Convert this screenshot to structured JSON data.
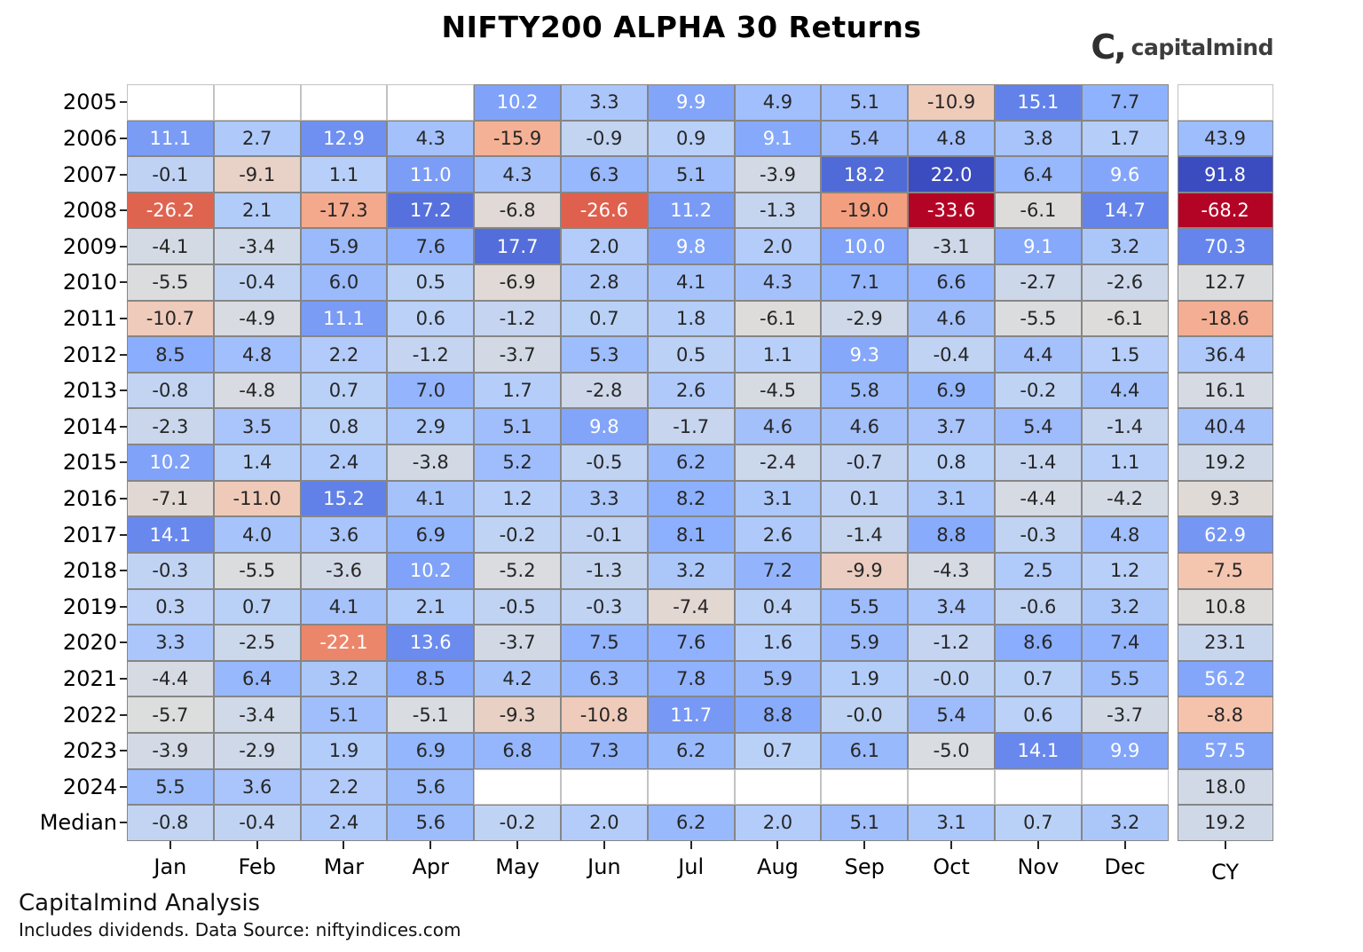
{
  "header": {
    "title": "NIFTY200 ALPHA 30 Returns",
    "logo_mark": "C,",
    "logo_text": "capitalmind"
  },
  "footer": {
    "line1": "Capitalmind Analysis",
    "line2": "Includes dividends. Data Source: niftyindices.com"
  },
  "chart_data": {
    "type": "heatmap",
    "title": "NIFTY200 ALPHA 30 Returns",
    "columns": [
      "Jan",
      "Feb",
      "Mar",
      "Apr",
      "May",
      "Jun",
      "Jul",
      "Aug",
      "Sep",
      "Oct",
      "Nov",
      "Dec"
    ],
    "cy_column": "CY",
    "rows": [
      {
        "label": "2005",
        "values": [
          null,
          null,
          null,
          null,
          "10.2",
          "3.3",
          "9.9",
          "4.9",
          "5.1",
          "-10.9",
          "15.1",
          "7.7"
        ],
        "cy": null
      },
      {
        "label": "2006",
        "values": [
          "11.1",
          "2.7",
          "12.9",
          "4.3",
          "-15.9",
          "-0.9",
          "0.9",
          "9.1",
          "5.4",
          "4.8",
          "3.8",
          "1.7"
        ],
        "cy": "43.9"
      },
      {
        "label": "2007",
        "values": [
          "-0.1",
          "-9.1",
          "1.1",
          "11.0",
          "4.3",
          "6.3",
          "5.1",
          "-3.9",
          "18.2",
          "22.0",
          "6.4",
          "9.6"
        ],
        "cy": "91.8"
      },
      {
        "label": "2008",
        "values": [
          "-26.2",
          "2.1",
          "-17.3",
          "17.2",
          "-6.8",
          "-26.6",
          "11.2",
          "-1.3",
          "-19.0",
          "-33.6",
          "-6.1",
          "14.7"
        ],
        "cy": "-68.2"
      },
      {
        "label": "2009",
        "values": [
          "-4.1",
          "-3.4",
          "5.9",
          "7.6",
          "17.7",
          "2.0",
          "9.8",
          "2.0",
          "10.0",
          "-3.1",
          "9.1",
          "3.2"
        ],
        "cy": "70.3"
      },
      {
        "label": "2010",
        "values": [
          "-5.5",
          "-0.4",
          "6.0",
          "0.5",
          "-6.9",
          "2.8",
          "4.1",
          "4.3",
          "7.1",
          "6.6",
          "-2.7",
          "-2.6"
        ],
        "cy": "12.7"
      },
      {
        "label": "2011",
        "values": [
          "-10.7",
          "-4.9",
          "11.1",
          "0.6",
          "-1.2",
          "0.7",
          "1.8",
          "-6.1",
          "-2.9",
          "4.6",
          "-5.5",
          "-6.1"
        ],
        "cy": "-18.6"
      },
      {
        "label": "2012",
        "values": [
          "8.5",
          "4.8",
          "2.2",
          "-1.2",
          "-3.7",
          "5.3",
          "0.5",
          "1.1",
          "9.3",
          "-0.4",
          "4.4",
          "1.5"
        ],
        "cy": "36.4"
      },
      {
        "label": "2013",
        "values": [
          "-0.8",
          "-4.8",
          "0.7",
          "7.0",
          "1.7",
          "-2.8",
          "2.6",
          "-4.5",
          "5.8",
          "6.9",
          "-0.2",
          "4.4"
        ],
        "cy": "16.1"
      },
      {
        "label": "2014",
        "values": [
          "-2.3",
          "3.5",
          "0.8",
          "2.9",
          "5.1",
          "9.8",
          "-1.7",
          "4.6",
          "4.6",
          "3.7",
          "5.4",
          "-1.4"
        ],
        "cy": "40.4"
      },
      {
        "label": "2015",
        "values": [
          "10.2",
          "1.4",
          "2.4",
          "-3.8",
          "5.2",
          "-0.5",
          "6.2",
          "-2.4",
          "-0.7",
          "0.8",
          "-1.4",
          "1.1"
        ],
        "cy": "19.2"
      },
      {
        "label": "2016",
        "values": [
          "-7.1",
          "-11.0",
          "15.2",
          "4.1",
          "1.2",
          "3.3",
          "8.2",
          "3.1",
          "0.1",
          "3.1",
          "-4.4",
          "-4.2"
        ],
        "cy": "9.3"
      },
      {
        "label": "2017",
        "values": [
          "14.1",
          "4.0",
          "3.6",
          "6.9",
          "-0.2",
          "-0.1",
          "8.1",
          "2.6",
          "-1.4",
          "8.8",
          "-0.3",
          "4.8"
        ],
        "cy": "62.9"
      },
      {
        "label": "2018",
        "values": [
          "-0.3",
          "-5.5",
          "-3.6",
          "10.2",
          "-5.2",
          "-1.3",
          "3.2",
          "7.2",
          "-9.9",
          "-4.3",
          "2.5",
          "1.2"
        ],
        "cy": "-7.5"
      },
      {
        "label": "2019",
        "values": [
          "0.3",
          "0.7",
          "4.1",
          "2.1",
          "-0.5",
          "-0.3",
          "-7.4",
          "0.4",
          "5.5",
          "3.4",
          "-0.6",
          "3.2"
        ],
        "cy": "10.8"
      },
      {
        "label": "2020",
        "values": [
          "3.3",
          "-2.5",
          "-22.1",
          "13.6",
          "-3.7",
          "7.5",
          "7.6",
          "1.6",
          "5.9",
          "-1.2",
          "8.6",
          "7.4"
        ],
        "cy": "23.1"
      },
      {
        "label": "2021",
        "values": [
          "-4.4",
          "6.4",
          "3.2",
          "8.5",
          "4.2",
          "6.3",
          "7.8",
          "5.9",
          "1.9",
          "-0.0",
          "0.7",
          "5.5"
        ],
        "cy": "56.2"
      },
      {
        "label": "2022",
        "values": [
          "-5.7",
          "-3.4",
          "5.1",
          "-5.1",
          "-9.3",
          "-10.8",
          "11.7",
          "8.8",
          "-0.0",
          "5.4",
          "0.6",
          "-3.7"
        ],
        "cy": "-8.8"
      },
      {
        "label": "2023",
        "values": [
          "-3.9",
          "-2.9",
          "1.9",
          "6.9",
          "6.8",
          "7.3",
          "6.2",
          "0.7",
          "6.1",
          "-5.0",
          "14.1",
          "9.9"
        ],
        "cy": "57.5"
      },
      {
        "label": "2024",
        "values": [
          "5.5",
          "3.6",
          "2.2",
          "5.6",
          null,
          null,
          null,
          null,
          null,
          null,
          null,
          null
        ],
        "cy": "18.0"
      },
      {
        "label": "Median",
        "values": [
          "-0.8",
          "-0.4",
          "2.4",
          "5.6",
          "-0.2",
          "2.0",
          "6.2",
          "2.0",
          "5.1",
          "3.1",
          "0.7",
          "3.2"
        ],
        "cy": "19.2"
      }
    ],
    "color_scale": {
      "name": "coolwarm_reversed",
      "monthly_domain": [
        -33.6,
        22.0
      ],
      "cy_domain": [
        -68.2,
        91.8
      ],
      "coolwarm_anchors": [
        "#3B4CC0",
        "#6282EA",
        "#8DB0FE",
        "#B8D0F9",
        "#DDDDDD",
        "#F5C4AD",
        "#F49A7B",
        "#DE604D",
        "#B40426"
      ],
      "text_dark": "#262626",
      "text_light": "#ffffff",
      "grid_color": "#868686",
      "empty_grid_color": "#c2c2c2",
      "luminance_threshold": 0.408
    },
    "legend": "none",
    "grid": "on"
  }
}
